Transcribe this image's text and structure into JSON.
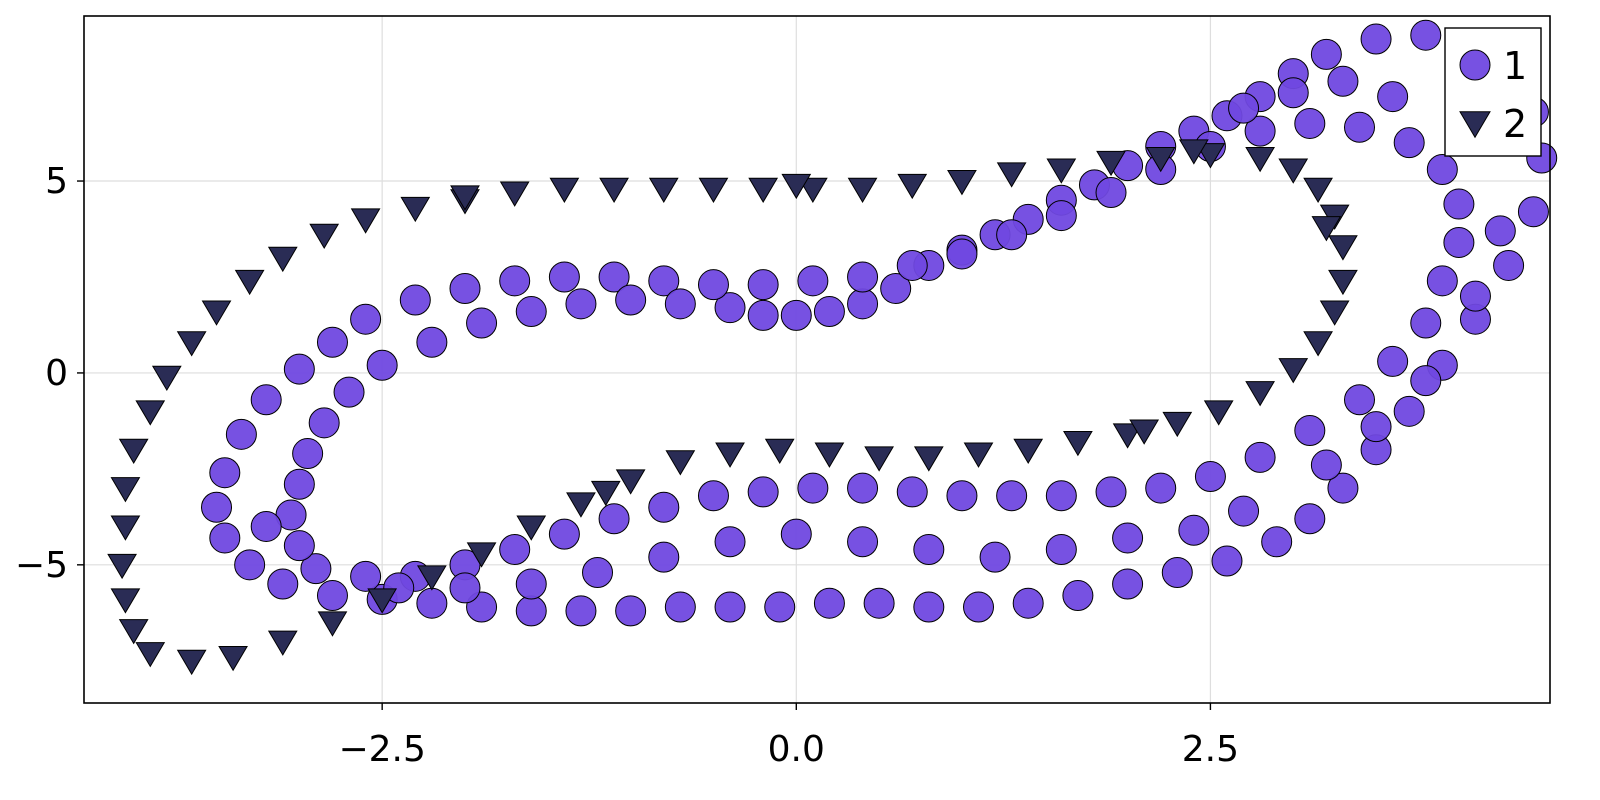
{
  "chart_data": {
    "type": "scatter",
    "title": "",
    "xlabel": "",
    "ylabel": "",
    "xlim": [
      -4.3,
      4.55
    ],
    "ylim": [
      -8.6,
      9.3
    ],
    "x_ticks": [
      {
        "value": -2.5,
        "label": "−2.5"
      },
      {
        "value": 0.0,
        "label": "0.0"
      },
      {
        "value": 2.5,
        "label": "2.5"
      }
    ],
    "y_ticks": [
      {
        "value": -5,
        "label": "−5"
      },
      {
        "value": 0,
        "label": "0"
      },
      {
        "value": 5,
        "label": "5"
      }
    ],
    "grid": true,
    "legend_position": "top-right",
    "series": [
      {
        "name": "1",
        "marker": "circle",
        "color": "#7048e0",
        "stroke": "#000000",
        "points": [
          [
            -0.4,
            1.7
          ],
          [
            -0.2,
            1.5
          ],
          [
            0.0,
            1.5
          ],
          [
            0.2,
            1.6
          ],
          [
            0.4,
            1.8
          ],
          [
            0.6,
            2.2
          ],
          [
            0.8,
            2.8
          ],
          [
            1.0,
            3.2
          ],
          [
            1.2,
            3.6
          ],
          [
            1.4,
            4.0
          ],
          [
            1.6,
            4.5
          ],
          [
            1.8,
            4.9
          ],
          [
            2.0,
            5.4
          ],
          [
            2.2,
            5.9
          ],
          [
            2.4,
            6.3
          ],
          [
            2.6,
            6.7
          ],
          [
            2.8,
            7.2
          ],
          [
            3.0,
            7.8
          ],
          [
            3.2,
            8.3
          ],
          [
            3.5,
            8.7
          ],
          [
            3.8,
            8.8
          ],
          [
            4.1,
            8.5
          ],
          [
            4.3,
            7.8
          ],
          [
            4.45,
            6.8
          ],
          [
            4.5,
            5.6
          ],
          [
            4.45,
            4.2
          ],
          [
            4.3,
            2.8
          ],
          [
            4.1,
            1.4
          ],
          [
            3.9,
            0.2
          ],
          [
            3.7,
            -1.0
          ],
          [
            3.5,
            -2.0
          ],
          [
            3.3,
            -3.0
          ],
          [
            3.1,
            -3.8
          ],
          [
            2.9,
            -4.4
          ],
          [
            2.6,
            -4.9
          ],
          [
            2.3,
            -5.2
          ],
          [
            2.0,
            -5.5
          ],
          [
            1.7,
            -5.8
          ],
          [
            1.4,
            -6.0
          ],
          [
            1.1,
            -6.1
          ],
          [
            0.8,
            -6.1
          ],
          [
            0.5,
            -6.0
          ],
          [
            0.2,
            -6.0
          ],
          [
            -0.1,
            -6.1
          ],
          [
            -0.4,
            -6.1
          ],
          [
            -0.7,
            -6.1
          ],
          [
            -1.0,
            -6.2
          ],
          [
            -1.3,
            -6.2
          ],
          [
            -1.6,
            -6.2
          ],
          [
            -1.9,
            -6.1
          ],
          [
            -2.2,
            -6.0
          ],
          [
            -2.5,
            -5.9
          ],
          [
            -2.8,
            -5.8
          ],
          [
            -3.1,
            -5.5
          ],
          [
            -3.3,
            -5.0
          ],
          [
            -3.45,
            -4.3
          ],
          [
            -3.5,
            -3.5
          ],
          [
            -3.45,
            -2.6
          ],
          [
            -3.35,
            -1.6
          ],
          [
            -3.2,
            -0.7
          ],
          [
            -3.0,
            0.1
          ],
          [
            -2.8,
            0.8
          ],
          [
            -2.6,
            1.4
          ],
          [
            -2.3,
            1.9
          ],
          [
            -2.0,
            2.2
          ],
          [
            -1.7,
            2.4
          ],
          [
            -1.4,
            2.5
          ],
          [
            -1.1,
            2.5
          ],
          [
            -0.8,
            2.4
          ],
          [
            -0.5,
            2.3
          ],
          [
            -0.2,
            2.3
          ],
          [
            0.1,
            2.4
          ],
          [
            0.4,
            2.5
          ],
          [
            0.7,
            2.8
          ],
          [
            1.0,
            3.1
          ],
          [
            1.3,
            3.6
          ],
          [
            1.6,
            4.1
          ],
          [
            1.9,
            4.7
          ],
          [
            2.2,
            5.3
          ],
          [
            2.5,
            5.9
          ],
          [
            2.8,
            6.3
          ],
          [
            3.1,
            6.5
          ],
          [
            3.4,
            6.4
          ],
          [
            3.7,
            6.0
          ],
          [
            3.9,
            5.3
          ],
          [
            4.0,
            4.4
          ],
          [
            4.0,
            3.4
          ],
          [
            3.9,
            2.4
          ],
          [
            3.8,
            1.3
          ],
          [
            3.6,
            0.3
          ],
          [
            3.4,
            -0.7
          ],
          [
            3.1,
            -1.5
          ],
          [
            2.8,
            -2.2
          ],
          [
            2.5,
            -2.7
          ],
          [
            2.2,
            -3.0
          ],
          [
            1.9,
            -3.1
          ],
          [
            1.6,
            -3.2
          ],
          [
            1.3,
            -3.2
          ],
          [
            1.0,
            -3.2
          ],
          [
            0.7,
            -3.1
          ],
          [
            0.4,
            -3.0
          ],
          [
            0.1,
            -3.0
          ],
          [
            -0.2,
            -3.1
          ],
          [
            -0.5,
            -3.2
          ],
          [
            -0.8,
            -3.5
          ],
          [
            -1.1,
            -3.8
          ],
          [
            -1.4,
            -4.2
          ],
          [
            -1.7,
            -4.6
          ],
          [
            -2.0,
            -5.0
          ],
          [
            -2.3,
            -5.3
          ],
          [
            -2.6,
            -5.3
          ],
          [
            -2.9,
            -5.1
          ],
          [
            -3.0,
            -4.5
          ],
          [
            -3.05,
            -3.7
          ],
          [
            -3.0,
            -2.9
          ],
          [
            -2.95,
            -2.1
          ],
          [
            -2.85,
            -1.3
          ],
          [
            -2.7,
            -0.5
          ],
          [
            -2.5,
            0.2
          ],
          [
            -2.2,
            0.8
          ],
          [
            -1.9,
            1.3
          ],
          [
            -1.6,
            1.6
          ],
          [
            -1.3,
            1.8
          ],
          [
            -1.0,
            1.9
          ],
          [
            -0.7,
            1.8
          ],
          [
            3.6,
            7.2
          ],
          [
            3.3,
            7.6
          ],
          [
            3.0,
            7.3
          ],
          [
            2.7,
            6.9
          ],
          [
            4.2,
            6.1
          ],
          [
            4.25,
            3.7
          ],
          [
            4.1,
            2.0
          ],
          [
            3.8,
            -0.2
          ],
          [
            3.5,
            -1.4
          ],
          [
            3.2,
            -2.4
          ],
          [
            2.7,
            -3.6
          ],
          [
            2.4,
            -4.1
          ],
          [
            2.0,
            -4.3
          ],
          [
            1.6,
            -4.6
          ],
          [
            1.2,
            -4.8
          ],
          [
            0.8,
            -4.6
          ],
          [
            0.4,
            -4.4
          ],
          [
            0.0,
            -4.2
          ],
          [
            -0.4,
            -4.4
          ],
          [
            -0.8,
            -4.8
          ],
          [
            -1.2,
            -5.2
          ],
          [
            -1.6,
            -5.5
          ],
          [
            -2.0,
            -5.6
          ],
          [
            -2.4,
            -5.6
          ],
          [
            -3.2,
            -4.0
          ]
        ]
      },
      {
        "name": "2",
        "marker": "triangle-down",
        "color": "#2a2c55",
        "stroke": "#000000",
        "points": [
          [
            -4.05,
            -4.0
          ],
          [
            -4.05,
            -3.0
          ],
          [
            -4.0,
            -2.0
          ],
          [
            -3.9,
            -1.0
          ],
          [
            -3.8,
            -0.1
          ],
          [
            -3.65,
            0.8
          ],
          [
            -3.5,
            1.6
          ],
          [
            -3.3,
            2.4
          ],
          [
            -3.1,
            3.0
          ],
          [
            -2.85,
            3.6
          ],
          [
            -2.6,
            4.0
          ],
          [
            -2.3,
            4.3
          ],
          [
            -2.0,
            4.5
          ],
          [
            -1.7,
            4.7
          ],
          [
            -1.4,
            4.8
          ],
          [
            -1.1,
            4.8
          ],
          [
            -0.8,
            4.8
          ],
          [
            -0.5,
            4.8
          ],
          [
            -0.2,
            4.8
          ],
          [
            0.1,
            4.8
          ],
          [
            0.4,
            4.8
          ],
          [
            0.7,
            4.9
          ],
          [
            1.0,
            5.0
          ],
          [
            1.3,
            5.2
          ],
          [
            1.6,
            5.3
          ],
          [
            1.9,
            5.5
          ],
          [
            2.2,
            5.6
          ],
          [
            2.5,
            5.7
          ],
          [
            2.8,
            5.6
          ],
          [
            3.0,
            5.3
          ],
          [
            3.15,
            4.8
          ],
          [
            3.25,
            4.1
          ],
          [
            3.3,
            3.3
          ],
          [
            3.3,
            2.4
          ],
          [
            3.25,
            1.6
          ],
          [
            3.15,
            0.8
          ],
          [
            3.0,
            0.1
          ],
          [
            2.8,
            -0.5
          ],
          [
            2.55,
            -1.0
          ],
          [
            2.3,
            -1.3
          ],
          [
            2.0,
            -1.6
          ],
          [
            1.7,
            -1.8
          ],
          [
            1.4,
            -2.0
          ],
          [
            1.1,
            -2.1
          ],
          [
            0.8,
            -2.2
          ],
          [
            0.5,
            -2.2
          ],
          [
            0.2,
            -2.1
          ],
          [
            -0.1,
            -2.0
          ],
          [
            -0.4,
            -2.1
          ],
          [
            -0.7,
            -2.3
          ],
          [
            -1.0,
            -2.8
          ],
          [
            -1.3,
            -3.4
          ],
          [
            -1.6,
            -4.0
          ],
          [
            -1.9,
            -4.7
          ],
          [
            -2.2,
            -5.3
          ],
          [
            -2.5,
            -5.9
          ],
          [
            -2.8,
            -6.5
          ],
          [
            -3.1,
            -7.0
          ],
          [
            -3.4,
            -7.4
          ],
          [
            -3.65,
            -7.5
          ],
          [
            -3.9,
            -7.3
          ],
          [
            -4.0,
            -6.7
          ],
          [
            -4.05,
            -5.9
          ],
          [
            -4.07,
            -5.0
          ],
          [
            -2.0,
            4.6
          ],
          [
            0.0,
            4.9
          ],
          [
            2.4,
            5.8
          ],
          [
            3.2,
            3.8
          ],
          [
            2.1,
            -1.5
          ],
          [
            -1.15,
            -3.1
          ]
        ]
      }
    ]
  }
}
